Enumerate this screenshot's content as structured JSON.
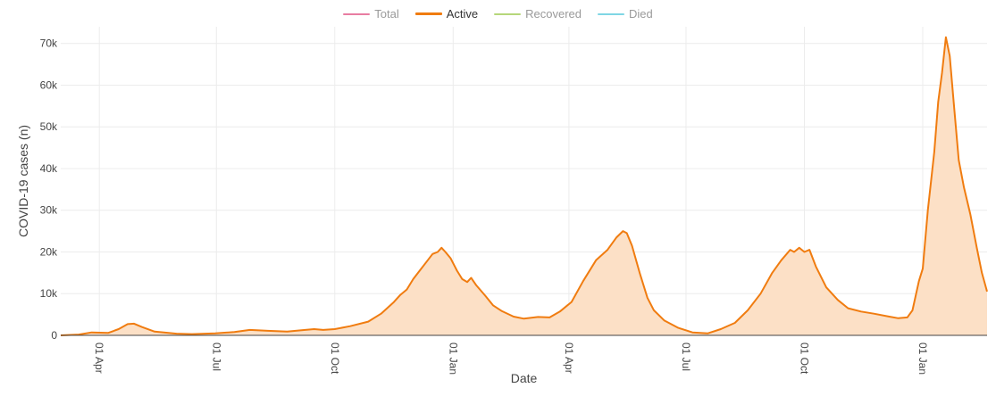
{
  "legend": [
    {
      "label": "Total",
      "color": "#e87da2",
      "active": false
    },
    {
      "label": "Active",
      "color": "#f07c10",
      "active": true
    },
    {
      "label": "Recovered",
      "color": "#b6d77a",
      "active": false
    },
    {
      "label": "Died",
      "color": "#7fd6e4",
      "active": false
    }
  ],
  "chart_data": {
    "type": "area",
    "xlabel": "Date",
    "ylabel": "COVID-19 cases (n)",
    "xlim": [
      "2020-03-02",
      "2022-02-20"
    ],
    "ylim": [
      0,
      74000
    ],
    "grid": true,
    "x_ticks": [
      {
        "date": "2020-04-01",
        "label": "01 Apr"
      },
      {
        "date": "2020-07-01",
        "label": "01 Jul"
      },
      {
        "date": "2020-10-01",
        "label": "01 Oct"
      },
      {
        "date": "2021-01-01",
        "label": "01 Jan"
      },
      {
        "date": "2021-04-01",
        "label": "01 Apr"
      },
      {
        "date": "2021-07-01",
        "label": "01 Jul"
      },
      {
        "date": "2021-10-01",
        "label": "01 Oct"
      },
      {
        "date": "2022-01-01",
        "label": "01 Jan"
      }
    ],
    "y_ticks": [
      {
        "value": 0,
        "label": "0"
      },
      {
        "value": 10000,
        "label": "10k"
      },
      {
        "value": 20000,
        "label": "20k"
      },
      {
        "value": 30000,
        "label": "30k"
      },
      {
        "value": 40000,
        "label": "40k"
      },
      {
        "value": 50000,
        "label": "50k"
      },
      {
        "value": 60000,
        "label": "60k"
      },
      {
        "value": 70000,
        "label": "70k"
      }
    ],
    "series": [
      {
        "name": "Active",
        "color": "#f07c10",
        "fill": "#fce0c6",
        "points": [
          [
            "2020-03-02",
            0
          ],
          [
            "2020-03-16",
            200
          ],
          [
            "2020-03-26",
            700
          ],
          [
            "2020-04-08",
            600
          ],
          [
            "2020-04-16",
            1500
          ],
          [
            "2020-04-23",
            2700
          ],
          [
            "2020-04-28",
            2800
          ],
          [
            "2020-05-04",
            2000
          ],
          [
            "2020-05-14",
            900
          ],
          [
            "2020-05-31",
            400
          ],
          [
            "2020-06-12",
            300
          ],
          [
            "2020-06-30",
            500
          ],
          [
            "2020-07-15",
            800
          ],
          [
            "2020-07-27",
            1300
          ],
          [
            "2020-08-10",
            1100
          ],
          [
            "2020-08-25",
            900
          ],
          [
            "2020-09-08",
            1300
          ],
          [
            "2020-09-15",
            1500
          ],
          [
            "2020-09-22",
            1300
          ],
          [
            "2020-10-01",
            1500
          ],
          [
            "2020-10-13",
            2200
          ],
          [
            "2020-10-27",
            3300
          ],
          [
            "2020-11-06",
            5200
          ],
          [
            "2020-11-16",
            8000
          ],
          [
            "2020-11-21",
            9700
          ],
          [
            "2020-11-26",
            11000
          ],
          [
            "2020-12-01",
            13500
          ],
          [
            "2020-12-06",
            15500
          ],
          [
            "2020-12-11",
            17500
          ],
          [
            "2020-12-16",
            19500
          ],
          [
            "2020-12-20",
            20000
          ],
          [
            "2020-12-23",
            21000
          ],
          [
            "2020-12-26",
            20000
          ],
          [
            "2020-12-30",
            18500
          ],
          [
            "2021-01-04",
            15500
          ],
          [
            "2021-01-08",
            13500
          ],
          [
            "2021-01-12",
            12800
          ],
          [
            "2021-01-15",
            13800
          ],
          [
            "2021-01-19",
            12000
          ],
          [
            "2021-01-26",
            9500
          ],
          [
            "2021-02-01",
            7200
          ],
          [
            "2021-02-08",
            5800
          ],
          [
            "2021-02-17",
            4500
          ],
          [
            "2021-02-25",
            4000
          ],
          [
            "2021-03-08",
            4400
          ],
          [
            "2021-03-17",
            4300
          ],
          [
            "2021-03-25",
            5700
          ],
          [
            "2021-04-03",
            8000
          ],
          [
            "2021-04-12",
            13000
          ],
          [
            "2021-04-22",
            18000
          ],
          [
            "2021-05-01",
            20500
          ],
          [
            "2021-05-08",
            23500
          ],
          [
            "2021-05-13",
            25000
          ],
          [
            "2021-05-16",
            24500
          ],
          [
            "2021-05-20",
            21500
          ],
          [
            "2021-05-26",
            15000
          ],
          [
            "2021-06-01",
            9000
          ],
          [
            "2021-06-06",
            6000
          ],
          [
            "2021-06-14",
            3600
          ],
          [
            "2021-06-25",
            1800
          ],
          [
            "2021-07-06",
            700
          ],
          [
            "2021-07-18",
            500
          ],
          [
            "2021-07-28",
            1500
          ],
          [
            "2021-08-08",
            3000
          ],
          [
            "2021-08-18",
            6000
          ],
          [
            "2021-08-28",
            10000
          ],
          [
            "2021-09-06",
            15000
          ],
          [
            "2021-09-13",
            18000
          ],
          [
            "2021-09-20",
            20500
          ],
          [
            "2021-09-23",
            20000
          ],
          [
            "2021-09-27",
            21000
          ],
          [
            "2021-10-01",
            20000
          ],
          [
            "2021-10-05",
            20500
          ],
          [
            "2021-10-10",
            16500
          ],
          [
            "2021-10-18",
            11500
          ],
          [
            "2021-10-27",
            8500
          ],
          [
            "2021-11-04",
            6500
          ],
          [
            "2021-11-14",
            5700
          ],
          [
            "2021-11-24",
            5200
          ],
          [
            "2021-12-06",
            4500
          ],
          [
            "2021-12-13",
            4100
          ],
          [
            "2021-12-20",
            4300
          ],
          [
            "2021-12-24",
            6000
          ],
          [
            "2021-12-29",
            13000
          ],
          [
            "2022-01-01",
            16000
          ],
          [
            "2022-01-05",
            30000
          ],
          [
            "2022-01-10",
            44000
          ],
          [
            "2022-01-13",
            56000
          ],
          [
            "2022-01-16",
            63000
          ],
          [
            "2022-01-19",
            71500
          ],
          [
            "2022-01-22",
            67000
          ],
          [
            "2022-01-25",
            56000
          ],
          [
            "2022-01-29",
            42000
          ],
          [
            "2022-02-02",
            35500
          ],
          [
            "2022-02-07",
            29000
          ],
          [
            "2022-02-12",
            21000
          ],
          [
            "2022-02-16",
            15000
          ],
          [
            "2022-02-20",
            10500
          ]
        ]
      }
    ]
  }
}
